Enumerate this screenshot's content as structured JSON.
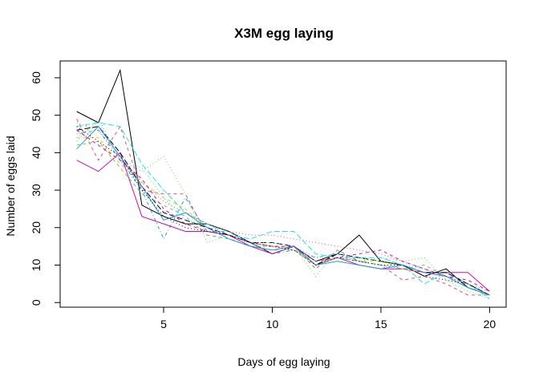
{
  "chart_data": {
    "type": "line",
    "title": "X3M egg laying",
    "xlabel": "Days of egg laying",
    "ylabel": "Number of eggs laid",
    "xlim": [
      0.24,
      20.76
    ],
    "ylim": [
      -1.24,
      64.48
    ],
    "x_ticks": [
      5,
      10,
      15,
      20
    ],
    "y_ticks": [
      0,
      10,
      20,
      30,
      40,
      50,
      60
    ],
    "grid": false,
    "legend": "none",
    "x": [
      1,
      2,
      3,
      4,
      5,
      6,
      7,
      8,
      9,
      10,
      11,
      12,
      13,
      14,
      15,
      16,
      17,
      18,
      19,
      20
    ],
    "series": [
      {
        "color": "#000000",
        "dash": "solid",
        "values": [
          51,
          48,
          62,
          26,
          23,
          21,
          21,
          19,
          16,
          13,
          15,
          11,
          13,
          18,
          11,
          10,
          7,
          9,
          4,
          2
        ]
      },
      {
        "color": "#DF536B",
        "dash": "dashed",
        "values": [
          49,
          38,
          47,
          30,
          29,
          29,
          18,
          17,
          15,
          15,
          15,
          9,
          14,
          11,
          10,
          6,
          7,
          5,
          2,
          2
        ]
      },
      {
        "color": "#61D04F",
        "dash": "dotted",
        "values": [
          43,
          49,
          38,
          35,
          39,
          29,
          16,
          18,
          15,
          15,
          15,
          7,
          14,
          11,
          12,
          11,
          12,
          6,
          3,
          1
        ]
      },
      {
        "color": "#2297E6",
        "dash": "dotdash",
        "values": [
          45,
          46,
          38,
          30,
          17,
          28,
          19,
          19,
          16,
          13,
          14,
          12,
          13,
          11,
          10,
          9,
          8,
          7,
          5,
          2
        ]
      },
      {
        "color": "#28E2E5",
        "dash": "longdash",
        "values": [
          47,
          48,
          47,
          37,
          30,
          24,
          21,
          18,
          17,
          19,
          19,
          13,
          12,
          12,
          12,
          10,
          5,
          8,
          5,
          1
        ]
      },
      {
        "color": "#CD0BBC",
        "dash": "solid",
        "values": [
          38,
          35,
          40,
          23,
          21,
          19,
          19,
          18,
          15,
          13,
          15,
          10,
          12,
          10,
          9,
          9,
          8,
          8,
          8,
          3
        ]
      },
      {
        "color": "#F5C710",
        "dash": "dashed",
        "values": [
          44,
          44,
          37,
          32,
          28,
          25,
          20,
          18,
          16,
          15,
          14,
          11,
          12,
          11,
          11,
          9,
          8,
          7,
          4,
          2
        ]
      },
      {
        "color": "#000000",
        "dash": "longdash",
        "values": [
          46,
          47,
          40,
          31,
          24,
          22,
          20,
          18,
          16,
          16,
          15,
          10,
          13,
          12,
          11,
          10,
          8,
          8,
          5,
          2
        ]
      },
      {
        "color": "#DF536B",
        "dash": "dotted",
        "values": [
          48,
          46,
          39,
          32,
          27,
          24,
          21,
          19,
          18,
          18,
          17,
          16,
          15,
          14,
          13,
          11,
          9,
          7,
          5,
          3
        ]
      },
      {
        "color": "#61D04F",
        "dash": "dashed",
        "values": [
          42,
          43,
          36,
          29,
          26,
          23,
          18,
          17,
          15,
          14,
          14,
          10,
          12,
          11,
          10,
          9,
          10,
          7,
          4,
          2
        ]
      },
      {
        "color": "#2297E6",
        "dash": "solid",
        "values": [
          41,
          47,
          39,
          31,
          22,
          24,
          20,
          17,
          15,
          14,
          15,
          10,
          11,
          10,
          9,
          10,
          8,
          7,
          4,
          2
        ]
      },
      {
        "color": "#28E2E5",
        "dash": "dotted",
        "values": [
          44,
          48,
          38,
          36,
          28,
          22,
          21,
          17,
          16,
          16,
          15,
          12,
          13,
          12,
          11,
          10,
          9,
          7,
          5,
          2
        ]
      },
      {
        "color": "#CD0BBC",
        "dash": "dashed",
        "values": [
          46,
          42,
          38,
          33,
          25,
          21,
          19,
          18,
          16,
          15,
          15,
          11,
          12,
          13,
          14,
          11,
          9,
          7,
          6,
          3
        ]
      },
      {
        "color": "#000000",
        "dash": "dotted",
        "values": [
          47,
          43,
          39,
          30,
          23,
          20,
          19,
          18,
          16,
          15,
          14,
          10,
          12,
          11,
          10,
          10,
          7,
          6,
          5,
          2
        ]
      }
    ]
  }
}
